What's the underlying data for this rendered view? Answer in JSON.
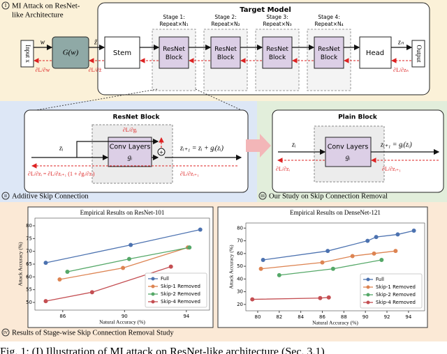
{
  "panels": {
    "attack": {
      "label": "I",
      "title_lines": [
        "MI Attack on ResNet-",
        "like Architecture"
      ],
      "target_title": "Target Model",
      "input": "Input x",
      "generator": "G(w)",
      "w": "w",
      "z_tilde": "z̃",
      "grad_w": "∂L/∂w",
      "grad_z": "∂L/∂z̃",
      "stem": "Stem",
      "stages": [
        {
          "title": "Stage 1:",
          "repeat": "Repeat×N₁",
          "block": "ResNet Block"
        },
        {
          "title": "Stage 2:",
          "repeat": "Repeat×N₂",
          "block": "ResNet Block"
        },
        {
          "title": "Stage 3:",
          "repeat": "Repeat×N₃",
          "block": "ResNet Block"
        },
        {
          "title": "Stage 4:",
          "repeat": "Repeat×N₄",
          "block": "ResNet Block"
        }
      ],
      "head": "Head",
      "output": "Output",
      "z_n": "zₙ",
      "grad_zn": "∂L/∂zₙ"
    },
    "skip": {
      "label": "II",
      "caption": "Additive Skip Connection",
      "title": "ResNet Block",
      "conv": "Conv Layers",
      "g": "gᵢ",
      "z_i": "zᵢ",
      "eq": "zᵢ₊₁ = zᵢ + gᵢ(zᵢ)",
      "grad_g": "∂L/∂gᵢ",
      "grad_left": "∂L/∂zᵢ = ∂L/∂zᵢ₊₁ (1 + ∂gᵢ/∂zᵢ)",
      "grad_right": "∂L/∂zᵢ₊₁"
    },
    "removal": {
      "label": "III",
      "caption": "Our Study on Skip Connection Removal",
      "title": "Plain Block",
      "conv": "Conv Layers",
      "g": "gᵢ",
      "z_i": "zᵢ",
      "eq": "zᵢ₊₁ = gᵢ(zᵢ)",
      "grad_left": "∂L/∂zᵢ",
      "grad_right": "∂L/∂zᵢ₊₁"
    },
    "results": {
      "label": "IV",
      "caption": "Results of Stage-wise Skip Connection Removal Study",
      "charts": [
        {
          "type": "line",
          "title": "Empirical Results on ResNet-101",
          "x_label": "Natural Accuracy (%)",
          "y_label": "Attack Accuracy (%)",
          "xlim": [
            84.2,
            95.5
          ],
          "ylim": [
            47,
            83
          ],
          "xticks": [
            86,
            90,
            94
          ],
          "yticks": [
            50,
            55,
            60,
            65,
            70,
            75,
            80
          ],
          "legend": "lower right",
          "series": [
            {
              "name": "Full",
              "color": "#4c72b0",
              "x": [
                84.9,
                90.4,
                94.9
              ],
              "values": [
                65.5,
                72.5,
                78.5
              ]
            },
            {
              "name": "Skip-1 Removed",
              "color": "#dd8452",
              "x": [
                85.8,
                89.9,
                94.1
              ],
              "values": [
                59,
                63.5,
                71.5
              ]
            },
            {
              "name": "Skip-2 Removed",
              "color": "#55a868",
              "x": [
                86.3,
                90.3,
                94.2
              ],
              "values": [
                62,
                67,
                71.5
              ]
            },
            {
              "name": "Skip-4 Removed",
              "color": "#c44e52",
              "x": [
                84.9,
                87.9,
                93.0
              ],
              "values": [
                50.5,
                54,
                64
              ]
            }
          ]
        },
        {
          "type": "line",
          "title": "Empirical Results on DenseNet-121",
          "x_label": "Natural Accuracy (%)",
          "y_label": "Attack Accuracy (%)",
          "xlim": [
            78.9,
            95.5
          ],
          "ylim": [
            15,
            84
          ],
          "xticks": [
            80,
            82,
            84,
            86,
            88,
            90,
            92,
            94
          ],
          "yticks": [
            20,
            30,
            40,
            50,
            60,
            70,
            80
          ],
          "legend": "lower right",
          "series": [
            {
              "name": "Full",
              "color": "#4c72b0",
              "x": [
                80.5,
                86.5,
                90.2,
                91.0,
                93.0,
                94.5
              ],
              "values": [
                55,
                62,
                70,
                73,
                75,
                78
              ]
            },
            {
              "name": "Skip-1 Removed",
              "color": "#dd8452",
              "x": [
                80.3,
                86.0,
                88.8,
                90.8,
                92.8
              ],
              "values": [
                48,
                53,
                58,
                60,
                62
              ]
            },
            {
              "name": "Skip-2 Removed",
              "color": "#55a868",
              "x": [
                82.0,
                87.0,
                91.5
              ],
              "values": [
                43,
                48,
                55
              ]
            },
            {
              "name": "Skip-4 Removed",
              "color": "#c44e52",
              "x": [
                79.5,
                85.8,
                86.6
              ],
              "values": [
                24,
                25,
                25.5
              ]
            }
          ]
        }
      ]
    }
  },
  "caption": "Fig. 1: (I) Illustration of MI attack on ResNet-like architecture (Sec. 3.1)"
}
